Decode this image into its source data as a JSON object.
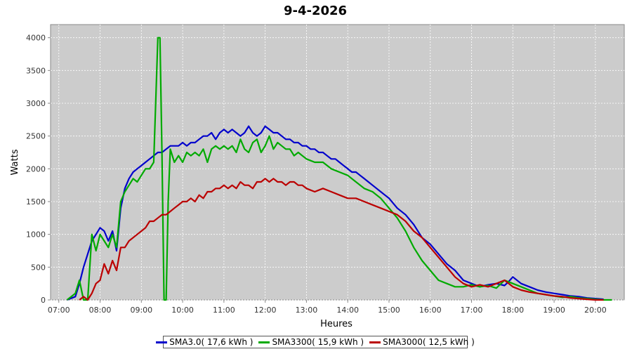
{
  "chart_data": {
    "type": "line",
    "title": "9-4-2026",
    "xlabel": "Heures",
    "ylabel": "Watts",
    "xlim": [
      6.8,
      20.7
    ],
    "ylim": [
      0,
      4200
    ],
    "x_ticks": [
      "07:00",
      "08:00",
      "09:00",
      "10:00",
      "11:00",
      "12:00",
      "13:00",
      "14:00",
      "15:00",
      "16:00",
      "17:00",
      "18:00",
      "19:00",
      "20:00"
    ],
    "y_ticks": [
      0,
      500,
      1000,
      1500,
      2000,
      2500,
      3000,
      3500,
      4000
    ],
    "grid": true,
    "legend_position": "bottom",
    "series": [
      {
        "name": "SMA3.0( 17,6 kWh )",
        "color": "#0000cc",
        "x": [
          7.2,
          7.4,
          7.5,
          7.6,
          7.7,
          7.8,
          7.9,
          8.0,
          8.1,
          8.2,
          8.3,
          8.4,
          8.5,
          8.6,
          8.7,
          8.8,
          8.9,
          9.0,
          9.1,
          9.2,
          9.3,
          9.4,
          9.5,
          9.6,
          9.7,
          9.8,
          9.9,
          10.0,
          10.1,
          10.2,
          10.3,
          10.4,
          10.5,
          10.6,
          10.7,
          10.8,
          10.9,
          11.0,
          11.1,
          11.2,
          11.3,
          11.4,
          11.5,
          11.6,
          11.7,
          11.8,
          11.9,
          12.0,
          12.1,
          12.2,
          12.3,
          12.4,
          12.5,
          12.6,
          12.7,
          12.8,
          12.9,
          13.0,
          13.1,
          13.2,
          13.3,
          13.4,
          13.5,
          13.6,
          13.7,
          13.8,
          13.9,
          14.0,
          14.1,
          14.2,
          14.3,
          14.4,
          14.5,
          14.6,
          14.7,
          14.8,
          14.9,
          15.0,
          15.2,
          15.4,
          15.6,
          15.8,
          16.0,
          16.2,
          16.4,
          16.6,
          16.8,
          17.0,
          17.2,
          17.4,
          17.6,
          17.8,
          17.9,
          18.0,
          18.2,
          18.4,
          18.6,
          18.8,
          19.0,
          19.2,
          19.4,
          19.6,
          19.8,
          20.0,
          20.2
        ],
        "values": [
          0,
          50,
          250,
          500,
          700,
          900,
          1000,
          1100,
          1050,
          900,
          1050,
          750,
          1400,
          1700,
          1850,
          1950,
          2000,
          2050,
          2100,
          2150,
          2200,
          2250,
          2250,
          2300,
          2350,
          2350,
          2350,
          2400,
          2350,
          2400,
          2400,
          2450,
          2500,
          2500,
          2550,
          2450,
          2550,
          2600,
          2550,
          2600,
          2550,
          2500,
          2550,
          2650,
          2550,
          2500,
          2550,
          2650,
          2600,
          2550,
          2550,
          2500,
          2450,
          2450,
          2400,
          2400,
          2350,
          2350,
          2300,
          2300,
          2250,
          2250,
          2200,
          2150,
          2150,
          2100,
          2050,
          2000,
          1950,
          1950,
          1900,
          1850,
          1800,
          1750,
          1700,
          1650,
          1600,
          1550,
          1400,
          1300,
          1150,
          950,
          850,
          700,
          550,
          450,
          300,
          250,
          200,
          230,
          250,
          220,
          280,
          350,
          250,
          200,
          150,
          120,
          100,
          80,
          60,
          50,
          30,
          20,
          10
        ],
        "kwh_label": "17,6 kWh"
      },
      {
        "name": "SMA3300( 15,9 kWh )",
        "color": "#00aa00",
        "x": [
          7.2,
          7.4,
          7.5,
          7.6,
          7.7,
          7.8,
          7.9,
          8.0,
          8.1,
          8.2,
          8.3,
          8.4,
          8.5,
          8.6,
          8.7,
          8.8,
          8.9,
          9.0,
          9.1,
          9.2,
          9.3,
          9.4,
          9.45,
          9.5,
          9.55,
          9.6,
          9.65,
          9.7,
          9.8,
          9.9,
          10.0,
          10.1,
          10.2,
          10.3,
          10.4,
          10.5,
          10.6,
          10.7,
          10.8,
          10.9,
          11.0,
          11.1,
          11.2,
          11.3,
          11.4,
          11.5,
          11.6,
          11.7,
          11.8,
          11.9,
          12.0,
          12.1,
          12.2,
          12.3,
          12.4,
          12.5,
          12.6,
          12.7,
          12.8,
          12.9,
          13.0,
          13.2,
          13.4,
          13.6,
          13.8,
          14.0,
          14.2,
          14.4,
          14.6,
          14.8,
          15.0,
          15.2,
          15.4,
          15.6,
          15.8,
          16.0,
          16.2,
          16.4,
          16.6,
          16.8,
          17.0,
          17.2,
          17.4,
          17.6,
          17.8,
          18.0,
          18.2,
          18.4,
          18.6,
          18.8,
          19.0,
          19.2,
          19.4,
          19.6,
          19.8,
          20.0,
          20.2,
          20.4
        ],
        "values": [
          0,
          100,
          300,
          0,
          0,
          1000,
          750,
          1000,
          900,
          800,
          1000,
          800,
          1500,
          1650,
          1750,
          1850,
          1800,
          1900,
          2000,
          2000,
          2100,
          4000,
          4000,
          2200,
          0,
          0,
          1500,
          2300,
          2100,
          2200,
          2100,
          2250,
          2200,
          2250,
          2200,
          2300,
          2100,
          2300,
          2350,
          2300,
          2350,
          2300,
          2350,
          2250,
          2450,
          2300,
          2250,
          2400,
          2450,
          2250,
          2350,
          2500,
          2300,
          2400,
          2350,
          2300,
          2300,
          2200,
          2250,
          2200,
          2150,
          2100,
          2100,
          2000,
          1950,
          1900,
          1800,
          1700,
          1650,
          1550,
          1400,
          1250,
          1050,
          800,
          600,
          450,
          300,
          250,
          200,
          200,
          230,
          200,
          220,
          180,
          300,
          250,
          200,
          150,
          100,
          80,
          60,
          40,
          50,
          30,
          20,
          10,
          0,
          0
        ],
        "kwh_label": "15,9 kWh"
      },
      {
        "name": "SMA3000( 12,5 kWh )",
        "color": "#bb0000",
        "x": [
          7.5,
          7.6,
          7.7,
          7.8,
          7.9,
          8.0,
          8.1,
          8.2,
          8.3,
          8.4,
          8.5,
          8.6,
          8.7,
          8.8,
          8.9,
          9.0,
          9.1,
          9.2,
          9.3,
          9.4,
          9.5,
          9.6,
          9.7,
          9.8,
          9.9,
          10.0,
          10.1,
          10.2,
          10.3,
          10.4,
          10.5,
          10.6,
          10.7,
          10.8,
          10.9,
          11.0,
          11.1,
          11.2,
          11.3,
          11.4,
          11.5,
          11.6,
          11.7,
          11.8,
          11.9,
          12.0,
          12.1,
          12.2,
          12.3,
          12.4,
          12.5,
          12.6,
          12.7,
          12.8,
          12.9,
          13.0,
          13.2,
          13.4,
          13.6,
          13.8,
          14.0,
          14.2,
          14.4,
          14.6,
          14.8,
          15.0,
          15.2,
          15.4,
          15.6,
          15.8,
          16.0,
          16.2,
          16.4,
          16.6,
          16.8,
          17.0,
          17.2,
          17.4,
          17.6,
          17.8,
          18.0,
          18.2,
          18.4,
          18.6,
          18.8,
          19.0,
          19.2,
          19.4,
          19.6,
          19.8,
          20.0,
          20.2
        ],
        "values": [
          0,
          50,
          0,
          100,
          250,
          300,
          550,
          400,
          600,
          450,
          800,
          800,
          900,
          950,
          1000,
          1050,
          1100,
          1200,
          1200,
          1250,
          1300,
          1300,
          1350,
          1400,
          1450,
          1500,
          1500,
          1550,
          1500,
          1600,
          1550,
          1650,
          1650,
          1700,
          1700,
          1750,
          1700,
          1750,
          1700,
          1800,
          1750,
          1750,
          1700,
          1800,
          1800,
          1850,
          1800,
          1850,
          1800,
          1800,
          1750,
          1800,
          1800,
          1750,
          1750,
          1700,
          1650,
          1700,
          1650,
          1600,
          1550,
          1550,
          1500,
          1450,
          1400,
          1350,
          1300,
          1200,
          1050,
          950,
          800,
          650,
          500,
          350,
          250,
          200,
          230,
          200,
          250,
          300,
          200,
          150,
          120,
          100,
          80,
          60,
          50,
          30,
          20,
          10,
          0,
          0
        ],
        "kwh_label": "12,5 kWh"
      }
    ]
  },
  "legend": {
    "items": [
      {
        "label": "SMA3.0( 17,6 kWh )",
        "color": "#0000cc"
      },
      {
        "label": "SMA3300( 15,9 kWh )",
        "color": "#00aa00"
      },
      {
        "label": "SMA3000( 12,5 kWh )",
        "color": "#bb0000"
      }
    ]
  },
  "colors": {
    "plot_background": "#cccccc",
    "grid": "#ffffff",
    "axis": "#888888",
    "text": "#000000"
  }
}
